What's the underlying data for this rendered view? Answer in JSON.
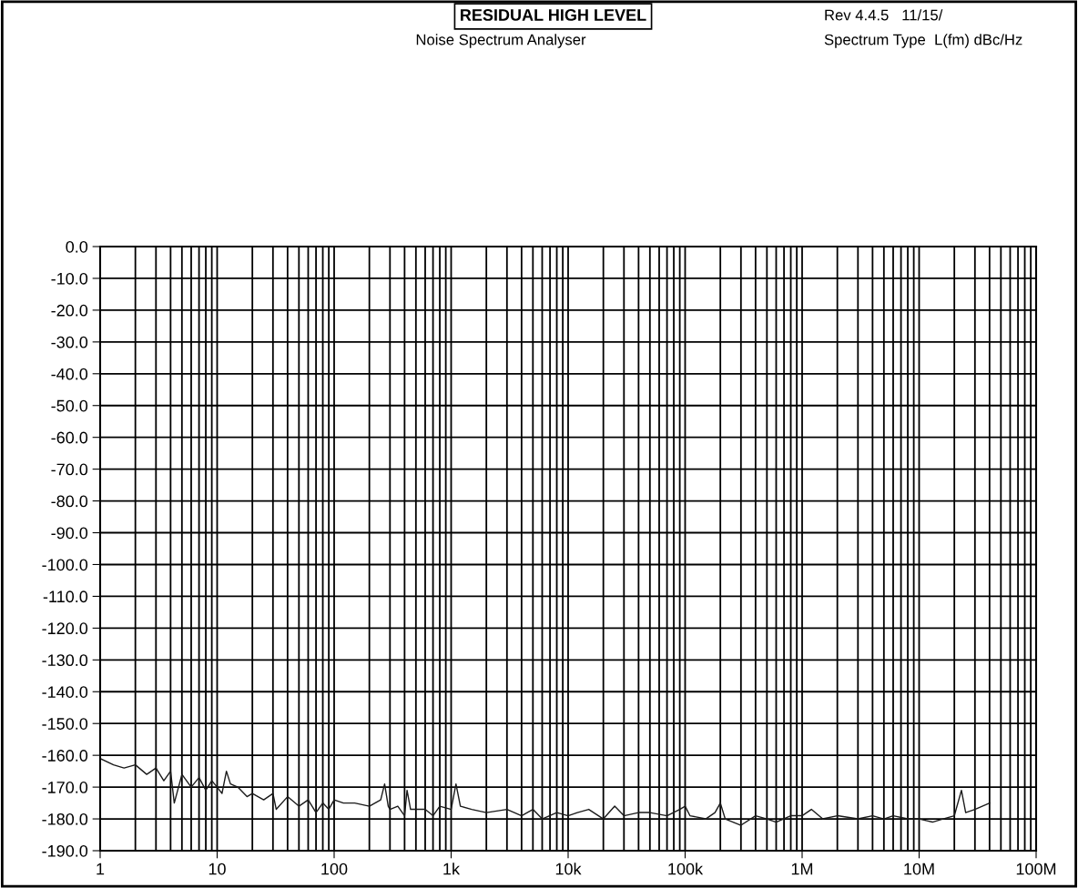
{
  "chart_data": {
    "type": "line",
    "title": "RESIDUAL HIGH LEVEL",
    "subtitle": "Noise Spectrum Analyser",
    "annotations": [
      "Rev 4.4.5   11/15/",
      "Spectrum Type  L(fm) dBc/Hz"
    ],
    "log": "x",
    "grid": true,
    "marker": "none",
    "line_style": "solid",
    "xlim": [
      1,
      100000000
    ],
    "ylim": [
      -190,
      0
    ],
    "xticks": [
      1,
      10,
      100,
      {
        "value": 1000,
        "label": "1k"
      },
      {
        "value": 10000,
        "label": "10k"
      },
      {
        "value": 100000,
        "label": "100k"
      },
      {
        "value": 1000000,
        "label": "1M"
      },
      {
        "value": 10000000,
        "label": "10M"
      },
      {
        "value": 100000000,
        "label": "100M"
      }
    ],
    "yticks": [
      {
        "value": 0,
        "label": "0.0"
      },
      {
        "value": -10,
        "label": "-10.0"
      },
      {
        "value": -20,
        "label": "-20.0"
      },
      {
        "value": -30,
        "label": "-30.0"
      },
      {
        "value": -40,
        "label": "-40.0"
      },
      {
        "value": -50,
        "label": "-50.0"
      },
      {
        "value": -60,
        "label": "-60.0"
      },
      {
        "value": -70,
        "label": "-70.0"
      },
      {
        "value": -80,
        "label": "-80.0"
      },
      {
        "value": -90,
        "label": "-90.0"
      },
      {
        "value": -100,
        "label": "-100.0"
      },
      {
        "value": -110,
        "label": "-110.0"
      },
      {
        "value": -120,
        "label": "-120.0"
      },
      {
        "value": -130,
        "label": "-130.0"
      },
      {
        "value": -140,
        "label": "-140.0"
      },
      {
        "value": -150,
        "label": "-150.0"
      },
      {
        "value": -160,
        "label": "-160.0"
      },
      {
        "value": -170,
        "label": "-170.0"
      },
      {
        "value": -180,
        "label": "-180.0"
      },
      {
        "value": -190,
        "label": "-190.0"
      }
    ],
    "series": [
      {
        "color": "#1a1a1a",
        "x": [
          1,
          1.3,
          1.6,
          2,
          2.5,
          3,
          3.5,
          4,
          4.3,
          5,
          6,
          7,
          8,
          9,
          10,
          11,
          12,
          13,
          15,
          18,
          20,
          25,
          30,
          32,
          40,
          50,
          60,
          70,
          80,
          90,
          100,
          120,
          150,
          200,
          250,
          270,
          290,
          300,
          350,
          400,
          420,
          450,
          600,
          700,
          800,
          1000,
          1100,
          1200,
          1500,
          2000,
          3000,
          4000,
          5000,
          6000,
          8000,
          10000,
          12000,
          15000,
          20000,
          25000,
          30000,
          40000,
          50000,
          70000,
          90000,
          100000,
          110000,
          150000,
          180000,
          200000,
          220000,
          300000,
          400000,
          500000,
          600000,
          800000,
          1000000,
          1200000,
          1500000,
          2000000,
          3000000,
          4000000,
          5000000,
          6000000,
          8000000,
          10000000,
          13000000,
          16000000,
          20000000,
          23000000,
          25000000,
          30000000,
          40000000
        ],
        "values": [
          -161,
          -163,
          -164,
          -163,
          -166,
          -164,
          -168,
          -165,
          -175,
          -166,
          -170,
          -167,
          -171,
          -168,
          -170,
          -172,
          -165,
          -169,
          -170,
          -173,
          -172,
          -174,
          -172,
          -177,
          -173,
          -176,
          -174,
          -178,
          -175,
          -177,
          -174,
          -175,
          -175,
          -176,
          -174,
          -169,
          -176,
          -177,
          -176,
          -179,
          -171,
          -177,
          -177,
          -179,
          -176,
          -177,
          -169,
          -176,
          -177,
          -178,
          -177,
          -179,
          -177,
          -180,
          -178,
          -179,
          -178,
          -177,
          -180,
          -176,
          -179,
          -178,
          -178,
          -179,
          -177,
          -176,
          -179,
          -180,
          -178,
          -175,
          -180,
          -182,
          -179,
          -180,
          -181,
          -179,
          -179,
          -177,
          -180,
          -179,
          -180,
          -179,
          -180,
          -179,
          -180,
          -180,
          -181,
          -180,
          -179,
          -171,
          -178,
          -177,
          -175
        ]
      }
    ]
  }
}
